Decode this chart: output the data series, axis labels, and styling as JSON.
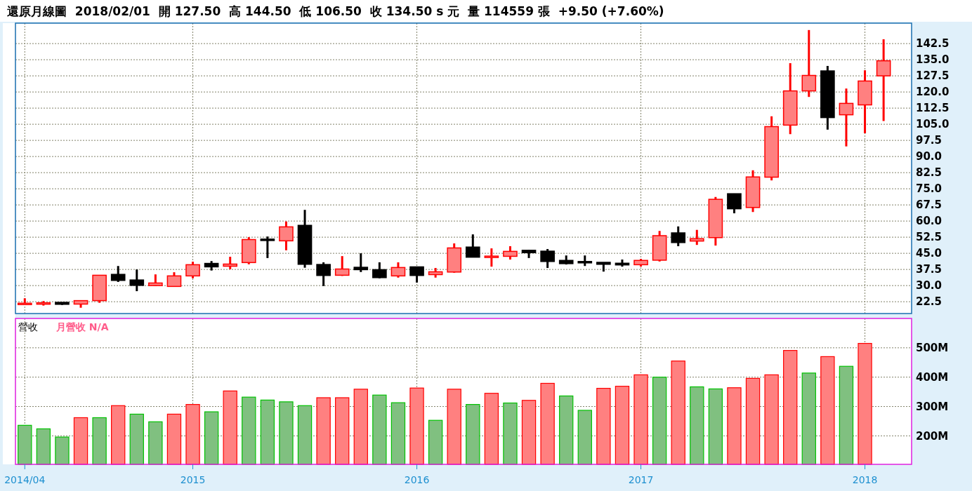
{
  "chart_data": [
    {
      "type": "candlestick",
      "title": "還原月線圖  2018/02/01  開 127.50  高 144.50  低 106.50  收 134.50 s 元  量 114559 張  +9.50 (+7.60%)",
      "categories": [
        "2014/04",
        null,
        null,
        null,
        null,
        null,
        null,
        null,
        null,
        "2015",
        null,
        null,
        null,
        null,
        null,
        null,
        null,
        null,
        null,
        null,
        null,
        "2016",
        null,
        null,
        null,
        null,
        null,
        null,
        null,
        null,
        null,
        null,
        null,
        "2017",
        null,
        null,
        null,
        null,
        null,
        null,
        null,
        null,
        null,
        null,
        null,
        "2018",
        null
      ],
      "ohlc": [
        [
          21.3,
          24.1,
          21.2,
          21.8
        ],
        [
          21.4,
          22.8,
          20.7,
          22.0
        ],
        [
          22.2,
          22.2,
          21.0,
          21.3
        ],
        [
          21.4,
          23.0,
          19.7,
          23.0
        ],
        [
          23.0,
          34.8,
          22.0,
          34.8
        ],
        [
          35.2,
          39.1,
          31.7,
          32.4
        ],
        [
          32.6,
          37.5,
          27.4,
          30.1
        ],
        [
          30.0,
          35.2,
          29.8,
          31.2
        ],
        [
          29.6,
          36.2,
          29.6,
          34.5
        ],
        [
          34.5,
          41.1,
          33.4,
          39.7
        ],
        [
          40.3,
          41.4,
          37.0,
          38.7
        ],
        [
          39.0,
          43.4,
          37.6,
          40.0
        ],
        [
          40.7,
          52.5,
          39.9,
          51.4
        ],
        [
          51.6,
          52.8,
          42.8,
          51.0
        ],
        [
          50.8,
          59.8,
          46.4,
          57.3
        ],
        [
          58.0,
          65.2,
          38.3,
          39.9
        ],
        [
          39.8,
          40.8,
          29.8,
          34.7
        ],
        [
          34.8,
          43.7,
          34.5,
          37.7
        ],
        [
          38.5,
          45.0,
          36.3,
          37.4
        ],
        [
          37.4,
          40.8,
          33.4,
          33.7
        ],
        [
          34.5,
          40.8,
          33.7,
          38.4
        ],
        [
          38.7,
          38.7,
          31.4,
          34.7
        ],
        [
          35.1,
          38.2,
          33.7,
          36.4
        ],
        [
          36.3,
          49.6,
          36.0,
          47.5
        ],
        [
          47.9,
          53.8,
          43.2,
          43.2
        ],
        [
          43.2,
          47.3,
          38.8,
          43.7
        ],
        [
          43.6,
          48.3,
          42.1,
          45.9
        ],
        [
          46.4,
          46.6,
          42.8,
          45.3
        ],
        [
          46.0,
          47.0,
          38.2,
          41.2
        ],
        [
          41.7,
          44.0,
          39.8,
          40.2
        ],
        [
          41.2,
          44.0,
          39.1,
          40.7
        ],
        [
          40.8,
          40.8,
          36.5,
          39.9
        ],
        [
          40.4,
          42.1,
          38.8,
          39.6
        ],
        [
          39.7,
          42.4,
          38.8,
          41.7
        ],
        [
          41.8,
          55.4,
          41.2,
          53.2
        ],
        [
          54.5,
          57.5,
          48.3,
          50.0
        ],
        [
          50.7,
          55.9,
          48.9,
          51.8
        ],
        [
          52.3,
          71.2,
          48.6,
          70.1
        ],
        [
          72.7,
          72.7,
          63.6,
          65.7
        ],
        [
          66.3,
          83.6,
          64.2,
          80.5
        ],
        [
          80.4,
          108.7,
          78.9,
          103.9
        ],
        [
          104.6,
          133.4,
          100.4,
          120.5
        ],
        [
          120.5,
          148.8,
          117.7,
          127.7
        ],
        [
          129.8,
          132.1,
          102.5,
          108.1
        ],
        [
          109.4,
          121.6,
          94.7,
          114.7
        ],
        [
          114.0,
          130.1,
          100.8,
          125.1
        ],
        [
          127.5,
          144.5,
          106.5,
          134.5
        ]
      ],
      "colors": [
        "#ff8080",
        "#ff8080",
        "#000000",
        "#ff8080",
        "#ff8080",
        "#000000",
        "#000000",
        "#ff8080",
        "#ff8080",
        "#ff8080",
        "#000000",
        "#ff8080",
        "#ff8080",
        "#000000",
        "#ff8080",
        "#000000",
        "#000000",
        "#ff8080",
        "#000000",
        "#000000",
        "#ff8080",
        "#000000",
        "#ff8080",
        "#ff8080",
        "#000000",
        "#ff8080",
        "#ff8080",
        "#000000",
        "#000000",
        "#000000",
        "#000000",
        "#000000",
        "#000000",
        "#ff8080",
        "#ff8080",
        "#000000",
        "#ff8080",
        "#ff8080",
        "#000000",
        "#ff8080",
        "#ff8080",
        "#ff8080",
        "#ff8080",
        "#000000",
        "#ff8080",
        "#ff8080",
        "#ff8080"
      ],
      "ylim": [
        17,
        152
      ],
      "yticks": [
        22.5,
        {
          "value": 30,
          "label": "30.0"
        },
        37.5,
        {
          "value": 45,
          "label": "45.0"
        },
        52.5,
        {
          "value": 60,
          "label": "60.0"
        },
        67.5,
        {
          "value": 75,
          "label": "75.0"
        },
        82.5,
        {
          "value": 90,
          "label": "90.0"
        },
        97.5,
        {
          "value": 105,
          "label": "105.0"
        },
        112.5,
        {
          "value": 120,
          "label": "120.0"
        },
        127.5,
        {
          "value": 135,
          "label": "135.0"
        },
        142.5
      ],
      "grid": true,
      "tick_labels": "y"
    },
    {
      "type": "bar",
      "title": "營收",
      "subtitle": "月營收 N/A",
      "categories": [
        "2014/04",
        null,
        null,
        null,
        null,
        null,
        null,
        null,
        null,
        "2015",
        null,
        null,
        null,
        null,
        null,
        null,
        null,
        null,
        null,
        null,
        null,
        "2016",
        null,
        null,
        null,
        null,
        null,
        null,
        null,
        null,
        null,
        null,
        null,
        "2017",
        null,
        null,
        null,
        null,
        null,
        null,
        null,
        null,
        null,
        null,
        null,
        "2018",
        null
      ],
      "values": [
        236,
        224,
        196,
        262,
        262,
        303,
        274,
        248,
        274,
        307,
        282,
        353,
        332,
        322,
        316,
        303,
        330,
        330,
        359,
        339,
        313,
        363,
        253,
        359,
        307,
        345,
        312,
        321,
        379,
        336,
        287,
        362,
        369,
        408,
        400,
        455,
        367,
        360,
        364,
        396,
        408,
        491,
        414,
        470,
        437,
        515,
        null
      ],
      "colors": [
        "#80c080",
        "#80c080",
        "#80c080",
        "#ff8080",
        "#80c080",
        "#ff8080",
        "#80c080",
        "#80c080",
        "#ff8080",
        "#ff8080",
        "#80c080",
        "#ff8080",
        "#80c080",
        "#80c080",
        "#80c080",
        "#80c080",
        "#ff8080",
        "#ff8080",
        "#ff8080",
        "#80c080",
        "#80c080",
        "#ff8080",
        "#80c080",
        "#ff8080",
        "#80c080",
        "#ff8080",
        "#80c080",
        "#ff8080",
        "#ff8080",
        "#80c080",
        "#80c080",
        "#ff8080",
        "#ff8080",
        "#ff8080",
        "#80c080",
        "#ff8080",
        "#80c080",
        "#80c080",
        "#ff8080",
        "#ff8080",
        "#ff8080",
        "#ff8080",
        "#80c080",
        "#ff8080",
        "#80c080",
        "#ff8080",
        null
      ],
      "ylim": [
        103,
        600
      ],
      "yticks": [
        {
          "value": 200,
          "label": "200M"
        },
        {
          "value": 300,
          "label": "300M"
        },
        {
          "value": 400,
          "label": "400M"
        },
        {
          "value": 500,
          "label": "500M"
        }
      ],
      "grid": true
    }
  ]
}
